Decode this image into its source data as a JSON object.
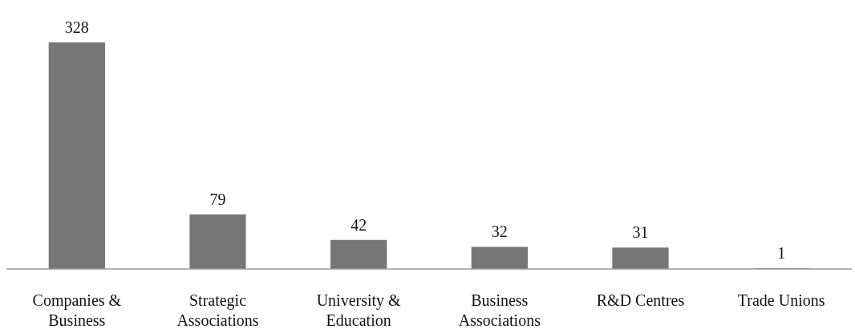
{
  "chart_data": {
    "type": "bar",
    "categories": [
      "Companies & Business",
      "Strategic Associations",
      "University & Education",
      "Business Associations",
      "R&D Centres",
      "Trade Unions"
    ],
    "values": [
      328,
      79,
      42,
      32,
      31,
      1
    ],
    "color": "#767676",
    "data_labels": true
  }
}
